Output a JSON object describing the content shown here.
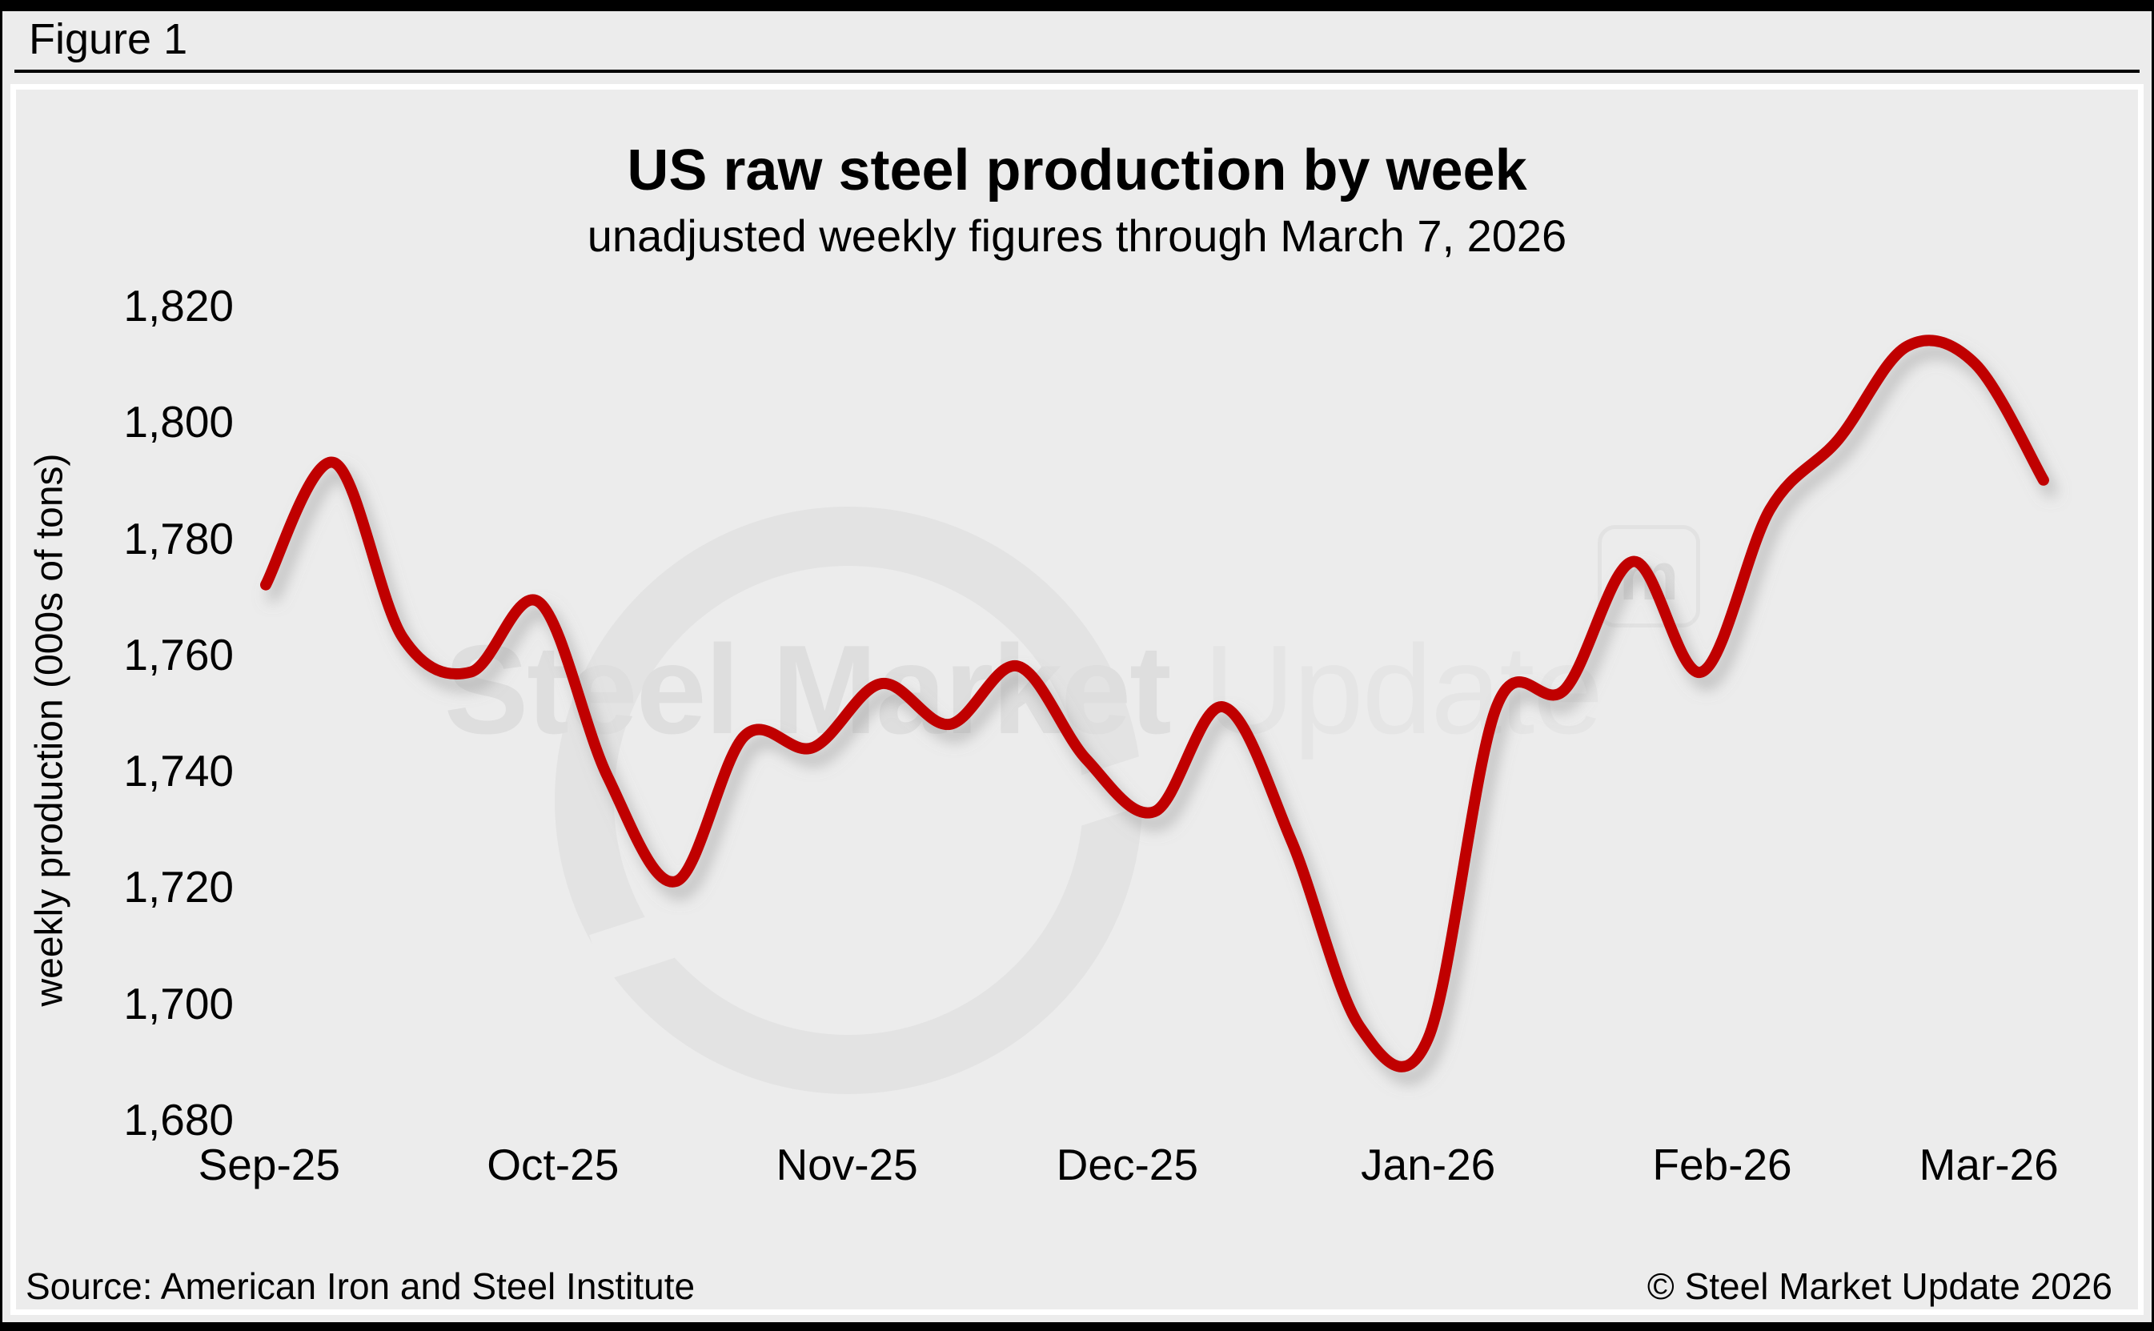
{
  "header": {
    "figure_label": "Figure 1"
  },
  "chart": {
    "title": "US raw steel production by week",
    "subtitle": "unadjusted weekly figures through March 7, 2026",
    "y_axis_title": "weekly production (000s of tons)"
  },
  "watermark": {
    "text_bold": "Steel Market",
    "text_light": "Update",
    "logo_glyph": "m"
  },
  "footer": {
    "source": "Source: American Iron and Steel Institute",
    "copyright": "© Steel Market Update 2026"
  },
  "colors": {
    "line": "#c00404",
    "background": "#ececec",
    "frame_border": "#ffffff",
    "bars": "#000000",
    "watermark": "#dedede"
  },
  "chart_data": {
    "type": "line",
    "title": "US raw steel production by week",
    "subtitle": "unadjusted weekly figures through March 7, 2026",
    "xlabel": "",
    "ylabel": "weekly production (000s of tons)",
    "ylim": [
      1680,
      1820
    ],
    "y_tick_interval": 20,
    "grid": false,
    "legend": false,
    "x_unit": "weekly points from Sep-25 through Mar 7, 2026",
    "x_ticks": [
      {
        "label": "Sep-25",
        "week": 0.05
      },
      {
        "label": "Oct-25",
        "week": 4.2
      },
      {
        "label": "Nov-25",
        "week": 8.5
      },
      {
        "label": "Dec-25",
        "week": 12.6
      },
      {
        "label": "Jan-26",
        "week": 17.0
      },
      {
        "label": "Feb-26",
        "week": 21.3
      },
      {
        "label": "Mar-26",
        "week": 25.2
      }
    ],
    "y_ticks": [
      {
        "value": 1820,
        "label": "1,820"
      },
      {
        "value": 1800,
        "label": "1,800"
      },
      {
        "value": 1780,
        "label": "1,780"
      },
      {
        "value": 1760,
        "label": "1,760"
      },
      {
        "value": 1740,
        "label": "1,740"
      },
      {
        "value": 1720,
        "label": "1,720"
      },
      {
        "value": 1700,
        "label": "1,700"
      },
      {
        "value": 1680,
        "label": "1,680"
      }
    ],
    "series": [
      {
        "name": "US weekly raw steel production (000s of tons)",
        "color": "#c00404",
        "values": [
          1772,
          1793,
          1763,
          1757,
          1769,
          1739,
          1721,
          1746,
          1744,
          1755,
          1748,
          1758,
          1742,
          1733,
          1751,
          1728,
          1696,
          1694,
          1751,
          1754,
          1776,
          1757,
          1785,
          1797,
          1813,
          1810,
          1790
        ]
      }
    ]
  }
}
